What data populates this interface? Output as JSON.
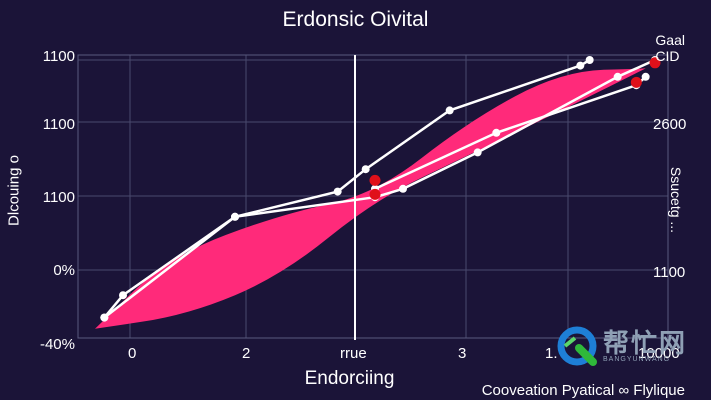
{
  "chart_data": {
    "type": "line",
    "title": "Erdonsic Oivital",
    "xlabel": "Endorciing",
    "ylabel": "Dlcouing o",
    "ylabel_right": "Ssucetg ...",
    "subcaption": "Cooveation Pyatical ∞ Flylique",
    "legend": [
      "Gaal",
      "CID"
    ],
    "legend_position": "top-right",
    "x_tick_labels": [
      "0",
      "2",
      "rrue",
      "3",
      "1.",
      "10000"
    ],
    "y_tick_labels_left": [
      "1100",
      "1100",
      "1100",
      "0%",
      "-40%"
    ],
    "y_tick_labels_right": [
      "2600",
      "1100"
    ],
    "grid": true,
    "xlim": [
      0,
      6
    ],
    "ylim": [
      0,
      100
    ],
    "band": {
      "color": "#ff2a7a",
      "upper": [
        [
          0.0,
          4
        ],
        [
          0.8,
          30
        ],
        [
          2.0,
          45
        ],
        [
          3.0,
          52
        ],
        [
          4.0,
          78
        ],
        [
          5.0,
          96
        ],
        [
          5.9,
          97
        ]
      ],
      "lower": [
        [
          5.9,
          97
        ],
        [
          5.0,
          82
        ],
        [
          4.0,
          66
        ],
        [
          3.0,
          50
        ],
        [
          2.0,
          23
        ],
        [
          1.0,
          9
        ],
        [
          0.0,
          4
        ]
      ]
    },
    "series": [
      {
        "values": [
          [
            0.1,
            8
          ],
          [
            0.3,
            16
          ],
          [
            1.5,
            44
          ],
          [
            2.6,
            53
          ],
          [
            2.9,
            61
          ],
          [
            3.8,
            82
          ],
          [
            5.2,
            98
          ],
          [
            5.3,
            100
          ]
        ]
      },
      {
        "values": [
          [
            0.1,
            8
          ],
          [
            1.5,
            44
          ],
          [
            3.0,
            51
          ],
          [
            3.3,
            54
          ],
          [
            4.1,
            67
          ],
          [
            5.6,
            94
          ],
          [
            6.0,
            100
          ]
        ]
      },
      {
        "values": [
          [
            3.0,
            54
          ],
          [
            4.3,
            74
          ],
          [
            5.8,
            91
          ],
          [
            5.9,
            94
          ]
        ]
      }
    ],
    "red_markers": [
      [
        3.0,
        52
      ],
      [
        3.0,
        57
      ],
      [
        5.8,
        92
      ],
      [
        6.0,
        99
      ]
    ],
    "watermark": {
      "text": "帮忙网",
      "sub": "BANGYUNWANG"
    }
  }
}
